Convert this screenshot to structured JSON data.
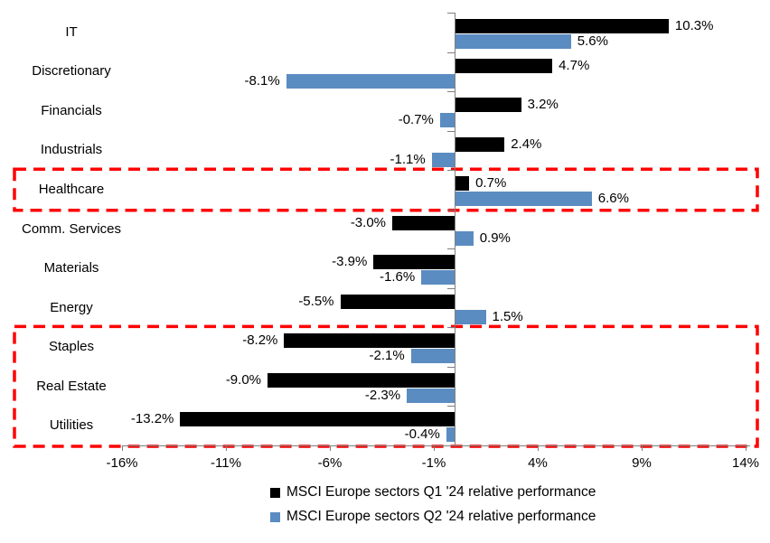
{
  "chart_data": {
    "type": "bar",
    "orientation": "horizontal",
    "title": "",
    "xlabel": "",
    "ylabel": "",
    "grid": false,
    "legend_position": "bottom",
    "categories": [
      "IT",
      "Discretionary",
      "Financials",
      "Industrials",
      "Healthcare",
      "Comm. Services",
      "Materials",
      "Energy",
      "Staples",
      "Real Estate",
      "Utilities"
    ],
    "series": [
      {
        "name": "MSCI Europe sectors Q1 '24 relative performance",
        "color": "#000000",
        "values": [
          10.3,
          4.7,
          3.2,
          2.4,
          0.7,
          -3.0,
          -3.9,
          -5.5,
          -8.2,
          -9.0,
          -13.2
        ],
        "labels": [
          "10.3%",
          "4.7%",
          "3.2%",
          "2.4%",
          "0.7%",
          "-3.0%",
          "-3.9%",
          "-5.5%",
          "-8.2%",
          "-9.0%",
          "-13.2%"
        ]
      },
      {
        "name": "MSCI Europe sectors Q2 '24 relative performance",
        "color": "#5B8CC1",
        "values": [
          5.6,
          -8.1,
          -0.7,
          -1.1,
          6.6,
          0.9,
          -1.6,
          1.5,
          -2.1,
          -2.3,
          -0.4
        ],
        "labels": [
          "5.6%",
          "-8.1%",
          "-0.7%",
          "-1.1%",
          "6.6%",
          "0.9%",
          "-1.6%",
          "1.5%",
          "-2.1%",
          "-2.3%",
          "-0.4%"
        ]
      }
    ],
    "x_axis": {
      "min": -16,
      "max": 14,
      "tick_values": [
        -16,
        -11,
        -6,
        -1,
        4,
        9,
        14
      ],
      "tick_labels": [
        "-16%",
        "-11%",
        "-6%",
        "-1%",
        "4%",
        "9%",
        "14%"
      ]
    },
    "highlights": [
      {
        "rows": [
          "Healthcare"
        ],
        "color": "#FF0000",
        "style": "dashed"
      },
      {
        "rows": [
          "Staples",
          "Real Estate",
          "Utilities"
        ],
        "color": "#FF0000",
        "style": "dashed"
      }
    ],
    "axis_color": "#7F7F7F"
  }
}
